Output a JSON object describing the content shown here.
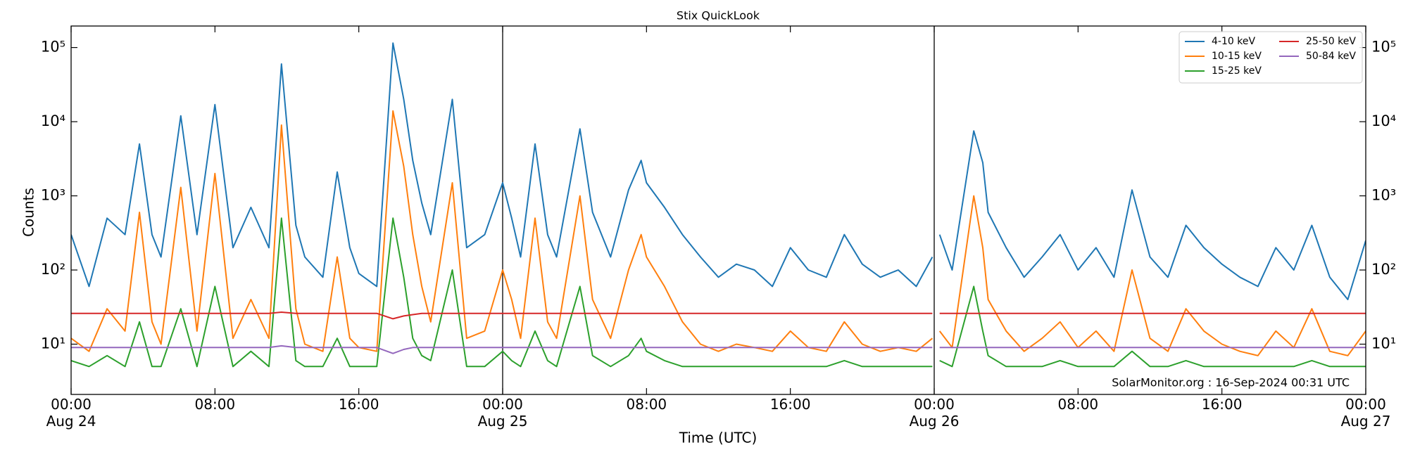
{
  "chart_data": {
    "type": "line",
    "title": "Stix QuickLook",
    "xlabel": "Time (UTC)",
    "ylabel": "Counts",
    "annotation": "SolarMonitor.org : 16-Sep-2024 00:31 UTC",
    "log_y": true,
    "legend": "upper right",
    "xlim": [
      0,
      72
    ],
    "xticks": [
      {
        "value": 0,
        "label": "00:00\nAug 24"
      },
      {
        "value": 8,
        "label": "08:00"
      },
      {
        "value": 16,
        "label": "16:00"
      },
      {
        "value": 24,
        "label": "00:00\nAug 25"
      },
      {
        "value": 32,
        "label": "08:00"
      },
      {
        "value": 40,
        "label": "16:00"
      },
      {
        "value": 48,
        "label": "00:00\nAug 26"
      },
      {
        "value": 56,
        "label": "08:00"
      },
      {
        "value": 64,
        "label": "16:00"
      },
      {
        "value": 72,
        "label": "00:00\nAug 27"
      }
    ],
    "vlines": [
      24,
      48
    ],
    "ylim": [
      2.1,
      195000
    ],
    "yticks": [
      {
        "value": 10,
        "label": "10¹"
      },
      {
        "value": 100,
        "label": "10²"
      },
      {
        "value": 1000,
        "label": "10³"
      },
      {
        "value": 10000,
        "label": "10⁴"
      },
      {
        "value": 100000,
        "label": "10⁵"
      }
    ],
    "x": [
      0,
      1,
      2,
      3,
      3.8,
      4.5,
      5,
      6.1,
      7,
      8,
      9,
      10,
      11,
      11.7,
      12.5,
      13,
      14,
      14.8,
      15.5,
      16,
      17,
      17.9,
      18.5,
      19,
      19.5,
      20,
      21.2,
      22,
      23,
      24,
      24.5,
      25,
      25.8,
      26.5,
      27,
      28.3,
      29,
      30,
      31,
      31.7,
      32,
      33,
      34,
      35,
      36,
      37,
      38,
      39,
      40,
      41,
      42,
      43,
      44,
      45,
      46,
      47,
      47.9,
      48.1,
      48.3,
      49,
      50.2,
      50.7,
      51,
      52,
      53,
      54,
      55,
      56,
      57,
      58,
      59,
      60,
      61,
      62,
      63,
      64,
      65,
      66,
      67,
      68,
      69,
      70,
      71,
      72
    ],
    "series": [
      {
        "name": "4-10 keV",
        "color": "#1f77b4",
        "values": [
          300,
          60,
          500,
          300,
          5000,
          300,
          150,
          12000,
          300,
          17000,
          200,
          700,
          200,
          60000,
          400,
          150,
          80,
          2100,
          200,
          90,
          60,
          115000,
          20000,
          3000,
          800,
          300,
          20000,
          200,
          300,
          1500,
          500,
          150,
          5000,
          300,
          150,
          8000,
          600,
          150,
          1200,
          3000,
          1500,
          700,
          300,
          150,
          80,
          120,
          100,
          60,
          200,
          100,
          80,
          300,
          120,
          80,
          100,
          60,
          150,
          null,
          300,
          100,
          7500,
          2800,
          600,
          200,
          80,
          150,
          300,
          100,
          200,
          80,
          1200,
          150,
          80,
          400,
          200,
          120,
          80,
          60,
          200,
          100,
          400,
          80,
          40,
          250
        ]
      },
      {
        "name": "10-15 keV",
        "color": "#ff7f0e",
        "values": [
          12,
          8,
          30,
          15,
          600,
          20,
          10,
          1300,
          15,
          2000,
          12,
          40,
          12,
          9000,
          30,
          10,
          8,
          150,
          12,
          9,
          8,
          14000,
          2500,
          300,
          60,
          20,
          1500,
          12,
          15,
          100,
          40,
          12,
          500,
          20,
          12,
          1000,
          40,
          12,
          100,
          300,
          150,
          60,
          20,
          10,
          8,
          10,
          9,
          8,
          15,
          9,
          8,
          20,
          10,
          8,
          9,
          8,
          12,
          null,
          15,
          9,
          1000,
          200,
          40,
          15,
          8,
          12,
          20,
          9,
          15,
          8,
          100,
          12,
          8,
          30,
          15,
          10,
          8,
          7,
          15,
          9,
          30,
          8,
          7,
          15
        ]
      },
      {
        "name": "15-25 keV",
        "color": "#2ca02c",
        "values": [
          6,
          5,
          7,
          5,
          20,
          5,
          5,
          30,
          5,
          60,
          5,
          8,
          5,
          500,
          6,
          5,
          5,
          12,
          5,
          5,
          5,
          500,
          80,
          12,
          7,
          6,
          100,
          5,
          5,
          8,
          6,
          5,
          15,
          6,
          5,
          60,
          7,
          5,
          7,
          12,
          8,
          6,
          5,
          5,
          5,
          5,
          5,
          5,
          5,
          5,
          5,
          6,
          5,
          5,
          5,
          5,
          5,
          null,
          6,
          5,
          60,
          15,
          7,
          5,
          5,
          5,
          6,
          5,
          5,
          5,
          8,
          5,
          5,
          6,
          5,
          5,
          5,
          5,
          5,
          5,
          6,
          5,
          5,
          5
        ]
      },
      {
        "name": "25-50 keV",
        "color": "#d62728",
        "values": [
          26,
          26,
          26,
          26,
          26,
          26,
          26,
          26,
          26,
          26,
          26,
          26,
          26,
          27,
          26,
          26,
          26,
          26,
          26,
          26,
          26,
          22,
          24,
          25,
          26,
          26,
          26,
          26,
          26,
          26,
          26,
          26,
          26,
          26,
          26,
          26,
          26,
          26,
          26,
          26,
          26,
          26,
          26,
          26,
          26,
          26,
          26,
          26,
          26,
          26,
          26,
          26,
          26,
          26,
          26,
          26,
          26,
          null,
          26,
          26,
          26,
          26,
          26,
          26,
          26,
          26,
          26,
          26,
          26,
          26,
          26,
          26,
          26,
          26,
          26,
          26,
          26,
          26,
          26,
          26,
          26,
          26,
          26,
          26
        ]
      },
      {
        "name": "50-84 keV",
        "color": "#9467bd",
        "values": [
          9,
          9,
          9,
          9,
          9,
          9,
          9,
          9,
          9,
          9,
          9,
          9,
          9,
          9.5,
          9,
          9,
          9,
          9,
          9,
          9,
          9,
          7.5,
          8.5,
          9,
          9,
          9,
          9,
          9,
          9,
          9,
          9,
          9,
          9,
          9,
          9,
          9,
          9,
          9,
          9,
          9,
          9,
          9,
          9,
          9,
          9,
          9,
          9,
          9,
          9,
          9,
          9,
          9,
          9,
          9,
          9,
          9,
          9,
          null,
          9,
          9,
          9,
          9,
          9,
          9,
          9,
          9,
          9,
          9,
          9,
          9,
          9,
          9,
          9,
          9,
          9,
          9,
          9,
          9,
          9,
          9,
          9,
          9,
          9,
          9
        ]
      }
    ]
  }
}
